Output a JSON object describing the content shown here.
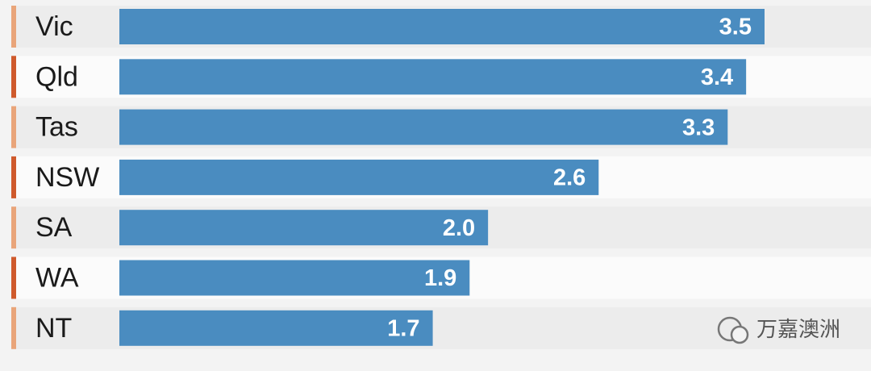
{
  "chart_data": {
    "type": "bar",
    "orientation": "horizontal",
    "categories": [
      "Vic",
      "Qld",
      "Tas",
      "NSW",
      "SA",
      "WA",
      "NT"
    ],
    "values": [
      3.5,
      3.4,
      3.3,
      2.6,
      2.0,
      1.9,
      1.7
    ],
    "value_labels": [
      "3.5",
      "3.4",
      "3.3",
      "2.6",
      "2.0",
      "1.9",
      "1.7"
    ],
    "color": "#4a8cc0",
    "watermark": "万嘉澳洲"
  }
}
